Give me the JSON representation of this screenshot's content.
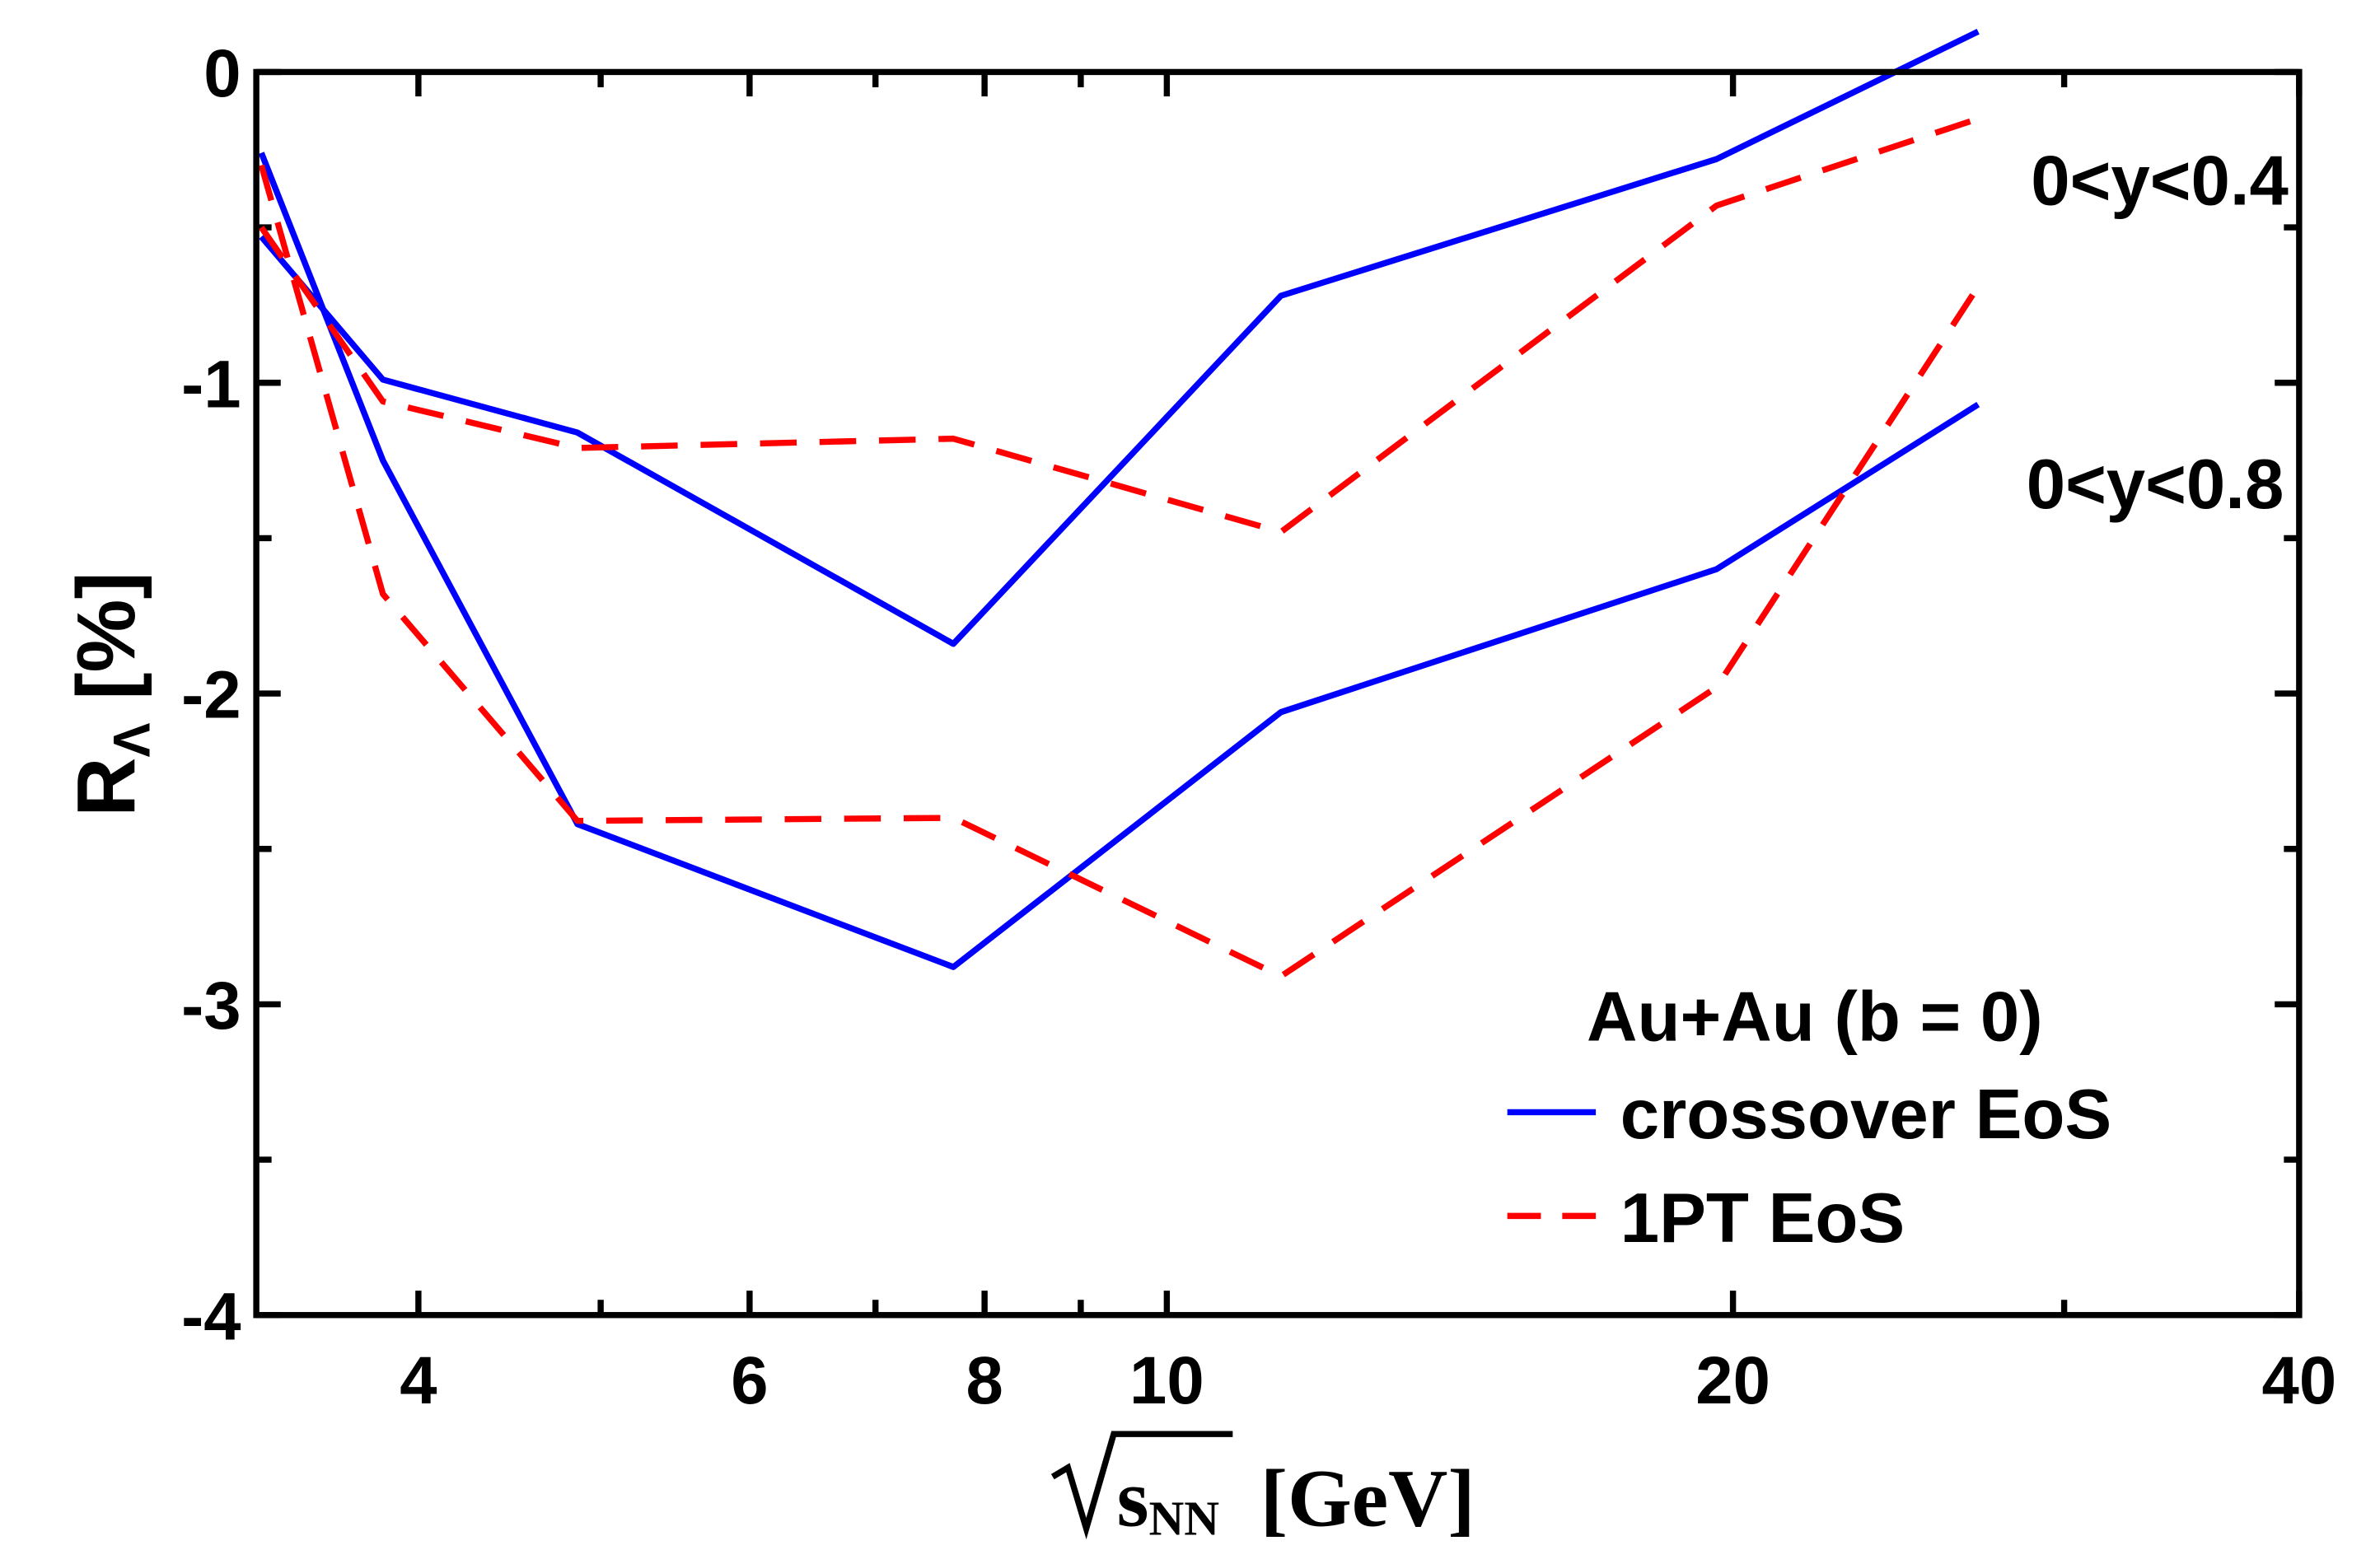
{
  "chart_data": {
    "type": "line",
    "title": "",
    "xlabel": "[GeV]",
    "xlabel_symbol": "s",
    "xlabel_sub": "NN",
    "ylabel": "R",
    "ylabel_sub": "Λ",
    "ylabel_unit": "[%]",
    "x_scale": "log",
    "xlim": [
      3.28,
      40
    ],
    "ylim": [
      -4,
      0
    ],
    "x_ticks": [
      4,
      6,
      8,
      10,
      20,
      40
    ],
    "x_tick_labels": [
      "4",
      "6",
      "8",
      "10",
      "20",
      "40"
    ],
    "x_minor_ticks": [
      5,
      7,
      9,
      30
    ],
    "y_ticks": [
      0,
      -1,
      -2,
      -3,
      -4
    ],
    "y_tick_labels": [
      "0",
      "-1",
      "-2",
      "-3",
      "-4"
    ],
    "y_minor_ticks": [
      -0.5,
      -1.5,
      -2.5,
      -3.5
    ],
    "grid": false,
    "legend": {
      "title": "Au+Au (b = 0)",
      "placement": "bottom-right",
      "entries": [
        "crossover EoS",
        "1PT EoS"
      ]
    },
    "annotations": [
      "0<y<0.4",
      "0<y<0.8"
    ],
    "x": [
      3.3,
      3.83,
      4.86,
      7.7,
      11.5,
      19.6,
      27
    ],
    "series": [
      {
        "name": "crossover EoS",
        "rapidity": "0<y<0.4",
        "color": "#0000ff",
        "style": "solid",
        "values": [
          -0.53,
          -0.99,
          -1.16,
          -1.84,
          -0.72,
          -0.28,
          0.13
        ]
      },
      {
        "name": "crossover EoS",
        "rapidity": "0<y<0.8",
        "color": "#0000ff",
        "style": "solid",
        "values": [
          -0.26,
          -1.25,
          -2.42,
          -2.88,
          -2.06,
          -1.6,
          -1.07
        ]
      },
      {
        "name": "1PT EoS",
        "rapidity": "0<y<0.4",
        "color": "#ff0000",
        "style": "dashed",
        "values": [
          -0.5,
          -1.06,
          -1.21,
          -1.18,
          -1.48,
          -0.43,
          -0.15
        ]
      },
      {
        "name": "1PT EoS",
        "rapidity": "0<y<0.8",
        "color": "#ff0000",
        "style": "dashed",
        "values": [
          -0.3,
          -1.68,
          -2.41,
          -2.4,
          -2.91,
          -1.98,
          -0.69
        ]
      }
    ]
  }
}
